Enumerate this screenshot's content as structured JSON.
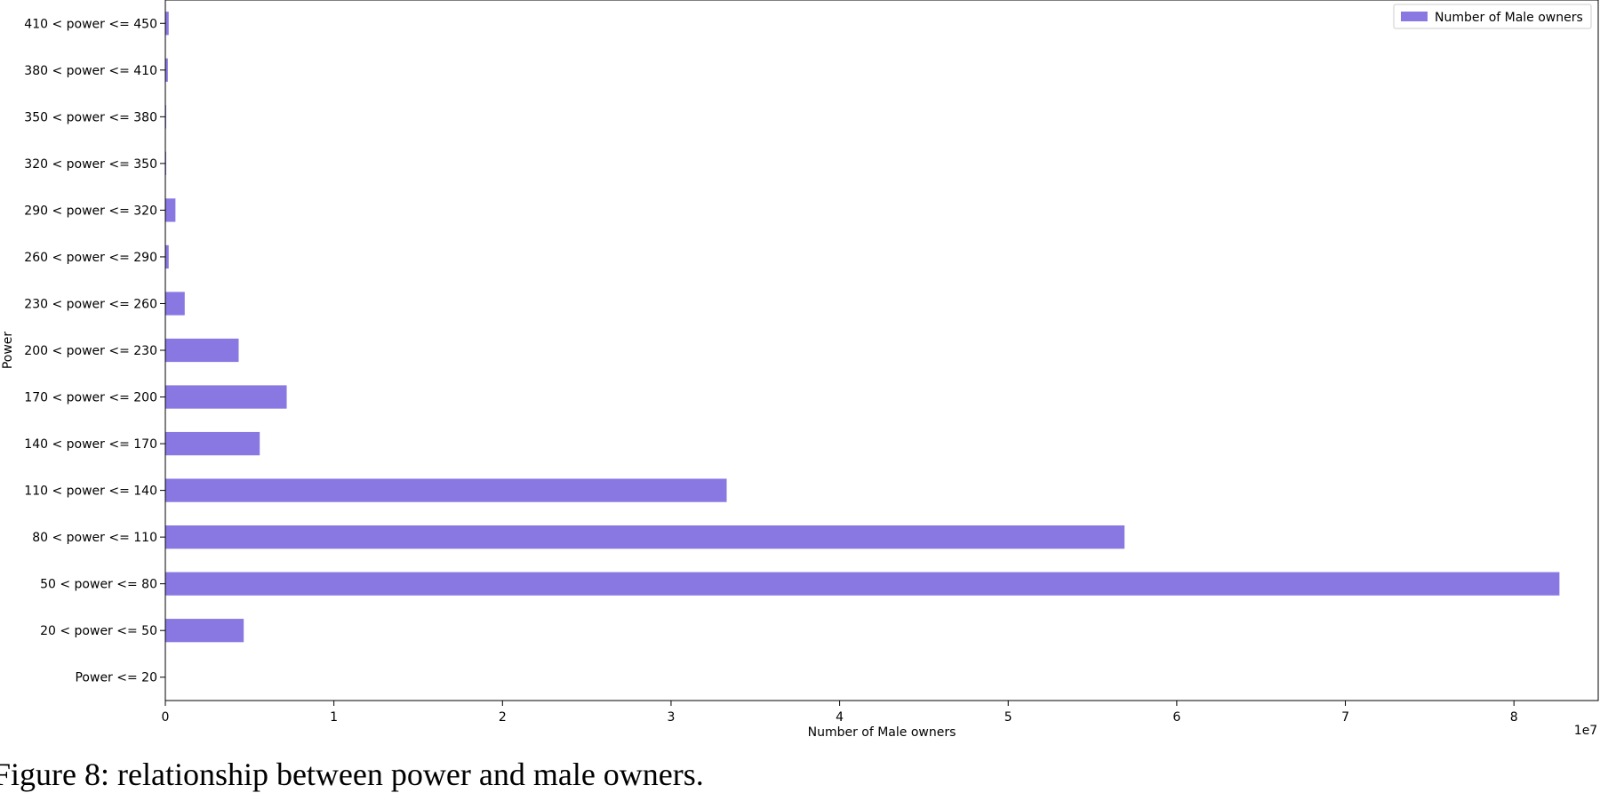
{
  "chart_data": {
    "type": "bar",
    "orientation": "horizontal",
    "categories": [
      "Power <= 20",
      "20 < power <= 50",
      "50 < power <= 80",
      "80 < power <= 110",
      "110 < power <= 140",
      "140 < power <= 170",
      "170 < power <= 200",
      "200 < power <= 230",
      "230 < power <= 260",
      "260 < power <= 290",
      "290 < power <= 320",
      "320 < power <= 350",
      "350 < power <= 380",
      "380 < power <= 410",
      "410 < power <= 450"
    ],
    "series": [
      {
        "name": "Number of Male owners",
        "color": "#8a78e2",
        "values": [
          0,
          4650000,
          82700000,
          56900000,
          33300000,
          5600000,
          7200000,
          4350000,
          1150000,
          200000,
          600000,
          50000,
          50000,
          150000,
          200000
        ]
      }
    ],
    "xlabel": "Number of Male owners",
    "ylabel": "Power",
    "x_offset_text": "1e7",
    "xticks": [
      0,
      10000000,
      20000000,
      30000000,
      40000000,
      50000000,
      60000000,
      70000000,
      80000000
    ],
    "xtick_labels": [
      "0",
      "1",
      "2",
      "3",
      "4",
      "5",
      "6",
      "7",
      "8"
    ],
    "xlim": [
      0,
      85000000
    ],
    "legend": "top-right",
    "grid": false
  },
  "caption": "Figure 8: relationship between power and male owners."
}
